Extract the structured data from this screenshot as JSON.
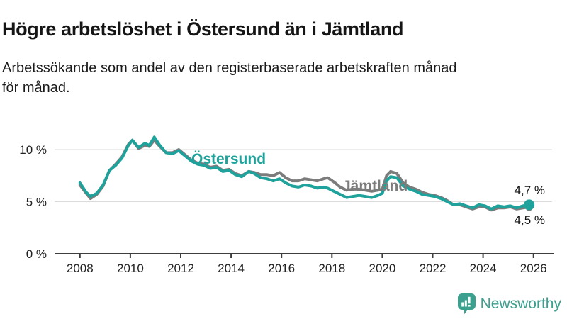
{
  "header": {
    "title": "Högre arbetslöshet i Östersund än i Jämtland",
    "subtitle_lines": [
      "Arbetssökande som andel av den registerbaserade arbetskraften månad",
      "för månad."
    ]
  },
  "chart_data": {
    "type": "line",
    "title": "Högre arbetslöshet i Östersund än i Jämtland",
    "ylabel": "",
    "xlabel": "",
    "grid": "horizontal",
    "legend": "inline-series-labels",
    "ylim": [
      0,
      12
    ],
    "xlim": [
      2007.9,
      2026.8
    ],
    "y_ticks": [
      {
        "value": 0,
        "label": "0 %"
      },
      {
        "value": 5,
        "label": "5 %"
      },
      {
        "value": 10,
        "label": "10 %"
      }
    ],
    "x_ticks": [
      2008,
      2010,
      2012,
      2014,
      2016,
      2018,
      2020,
      2022,
      2024,
      2026
    ],
    "x": [
      2008.0,
      2008.25,
      2008.42,
      2008.67,
      2008.92,
      2009.17,
      2009.42,
      2009.67,
      2009.92,
      2010.08,
      2010.33,
      2010.58,
      2010.75,
      2010.95,
      2011.17,
      2011.42,
      2011.67,
      2011.92,
      2012.17,
      2012.42,
      2012.67,
      2012.92,
      2013.17,
      2013.42,
      2013.67,
      2013.92,
      2014.17,
      2014.42,
      2014.7,
      2014.92,
      2015.17,
      2015.42,
      2015.67,
      2015.92,
      2016.17,
      2016.42,
      2016.67,
      2016.92,
      2017.17,
      2017.42,
      2017.67,
      2017.83,
      2018.08,
      2018.33,
      2018.58,
      2018.83,
      2019.08,
      2019.33,
      2019.58,
      2019.83,
      2020.0,
      2020.17,
      2020.33,
      2020.58,
      2020.83,
      2021.08,
      2021.33,
      2021.58,
      2021.83,
      2022.08,
      2022.33,
      2022.58,
      2022.83,
      2023.08,
      2023.33,
      2023.58,
      2023.83,
      2024.08,
      2024.33,
      2024.58,
      2024.83,
      2025.08,
      2025.33,
      2025.58,
      2025.83
    ],
    "series": [
      {
        "name": "Östersund",
        "color": "#1FA29B",
        "end_label": "4,7 %",
        "end_value": 4.7,
        "values": [
          6.8,
          5.9,
          5.5,
          5.8,
          6.6,
          8.0,
          8.5,
          9.2,
          10.4,
          10.9,
          10.2,
          10.6,
          10.4,
          11.2,
          10.4,
          9.7,
          9.6,
          9.9,
          9.4,
          8.9,
          8.6,
          8.5,
          8.2,
          8.3,
          7.9,
          8.0,
          7.6,
          7.4,
          7.9,
          7.7,
          7.3,
          7.2,
          7.0,
          7.2,
          6.8,
          6.5,
          6.4,
          6.6,
          6.5,
          6.3,
          6.4,
          6.3,
          6.0,
          5.7,
          5.4,
          5.5,
          5.6,
          5.5,
          5.4,
          5.6,
          5.8,
          7.0,
          7.4,
          7.3,
          6.5,
          6.2,
          6.0,
          5.7,
          5.6,
          5.5,
          5.3,
          5.0,
          4.7,
          4.8,
          4.6,
          4.4,
          4.7,
          4.6,
          4.3,
          4.6,
          4.5,
          4.6,
          4.4,
          4.6,
          4.7
        ]
      },
      {
        "name": "Jämtland",
        "color": "#7C7C7C",
        "end_label": "4,5 %",
        "end_value": 4.5,
        "values": [
          6.6,
          5.8,
          5.3,
          5.7,
          6.5,
          8.0,
          8.6,
          9.3,
          10.5,
          10.9,
          10.1,
          10.4,
          10.3,
          10.9,
          10.3,
          9.7,
          9.7,
          10.0,
          9.5,
          9.0,
          8.7,
          8.6,
          8.3,
          8.4,
          8.0,
          8.1,
          7.7,
          7.5,
          7.9,
          7.8,
          7.6,
          7.6,
          7.5,
          7.8,
          7.3,
          7.0,
          7.0,
          7.2,
          7.1,
          7.0,
          7.2,
          7.3,
          6.9,
          6.4,
          6.1,
          6.2,
          6.2,
          6.1,
          6.0,
          6.1,
          6.2,
          7.5,
          7.9,
          7.7,
          6.8,
          6.4,
          6.2,
          5.9,
          5.7,
          5.6,
          5.4,
          5.1,
          4.7,
          4.7,
          4.5,
          4.3,
          4.5,
          4.5,
          4.2,
          4.4,
          4.4,
          4.5,
          4.3,
          4.4,
          4.5
        ]
      }
    ]
  },
  "footer": {
    "brand": "Newsworthy",
    "brand_color": "#3BA08E",
    "logo_icon": "bar-chart-speech-bubble-icon"
  }
}
